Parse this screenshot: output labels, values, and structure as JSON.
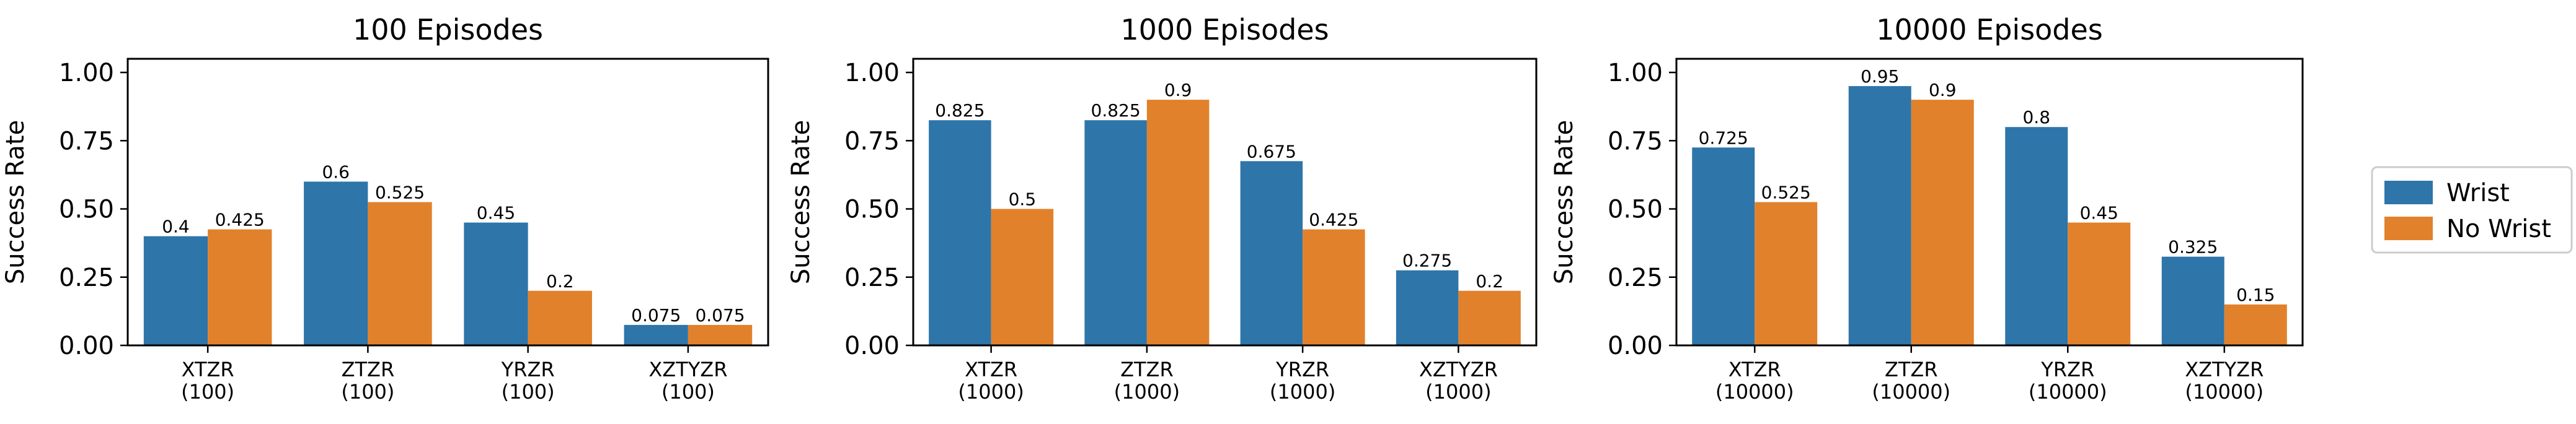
{
  "colors": {
    "wrist": "#2e75a9",
    "no_wrist": "#e2812b"
  },
  "legend": {
    "items": [
      "Wrist",
      "No Wrist"
    ],
    "placement": "right"
  },
  "chart_data": [
    {
      "type": "bar",
      "title": "100 Episodes",
      "ylabel": "Success Rate",
      "xlabel": "",
      "ylim": [
        0,
        1.05
      ],
      "yticks": [
        "0.00",
        "0.25",
        "0.50",
        "0.75",
        "1.00"
      ],
      "categories": [
        [
          "XTZR",
          "(100)"
        ],
        [
          "ZTZR",
          "(100)"
        ],
        [
          "YRZR",
          "(100)"
        ],
        [
          "XZTYZR",
          "(100)"
        ]
      ],
      "series": [
        {
          "name": "Wrist",
          "values": [
            0.4,
            0.6,
            0.45,
            0.075
          ],
          "labels": [
            "0.4",
            "0.6",
            "0.45",
            "0.075"
          ]
        },
        {
          "name": "No Wrist",
          "values": [
            0.425,
            0.525,
            0.2,
            0.075
          ],
          "labels": [
            "0.425",
            "0.525",
            "0.2",
            "0.075"
          ]
        }
      ]
    },
    {
      "type": "bar",
      "title": "1000 Episodes",
      "ylabel": "Success Rate",
      "xlabel": "",
      "ylim": [
        0,
        1.05
      ],
      "yticks": [
        "0.00",
        "0.25",
        "0.50",
        "0.75",
        "1.00"
      ],
      "categories": [
        [
          "XTZR",
          "(1000)"
        ],
        [
          "ZTZR",
          "(1000)"
        ],
        [
          "YRZR",
          "(1000)"
        ],
        [
          "XZTYZR",
          "(1000)"
        ]
      ],
      "series": [
        {
          "name": "Wrist",
          "values": [
            0.825,
            0.825,
            0.675,
            0.275
          ],
          "labels": [
            "0.825",
            "0.825",
            "0.675",
            "0.275"
          ]
        },
        {
          "name": "No Wrist",
          "values": [
            0.5,
            0.9,
            0.425,
            0.2
          ],
          "labels": [
            "0.5",
            "0.9",
            "0.425",
            "0.2"
          ]
        }
      ]
    },
    {
      "type": "bar",
      "title": "10000 Episodes",
      "ylabel": "Success Rate",
      "xlabel": "",
      "ylim": [
        0,
        1.05
      ],
      "yticks": [
        "0.00",
        "0.25",
        "0.50",
        "0.75",
        "1.00"
      ],
      "categories": [
        [
          "XTZR",
          "(10000)"
        ],
        [
          "ZTZR",
          "(10000)"
        ],
        [
          "YRZR",
          "(10000)"
        ],
        [
          "XZTYZR",
          "(10000)"
        ]
      ],
      "series": [
        {
          "name": "Wrist",
          "values": [
            0.725,
            0.95,
            0.8,
            0.325
          ],
          "labels": [
            "0.725",
            "0.95",
            "0.8",
            "0.325"
          ]
        },
        {
          "name": "No Wrist",
          "values": [
            0.525,
            0.9,
            0.45,
            0.15
          ],
          "labels": [
            "0.525",
            "0.9",
            "0.45",
            "0.15"
          ]
        }
      ]
    }
  ]
}
